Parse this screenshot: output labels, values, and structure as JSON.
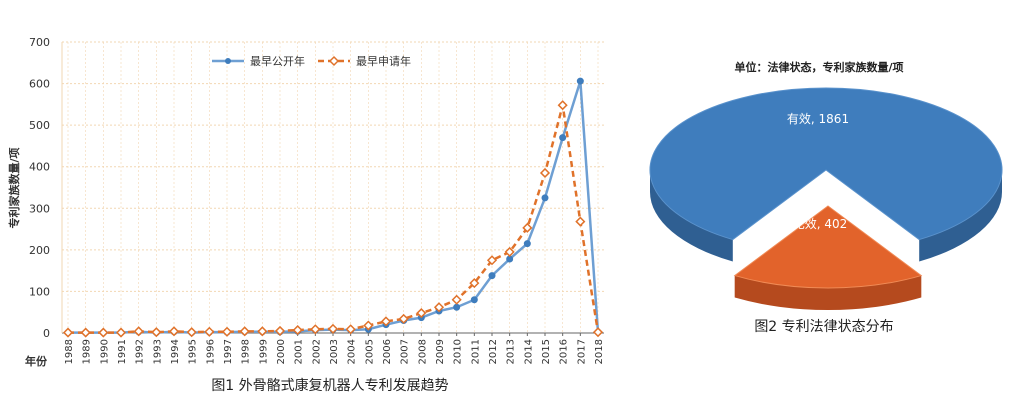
{
  "colors": {
    "line1": "#6e9fd3",
    "line2": "#e0722a",
    "grid": "#f2d7b3",
    "axis": "#666666",
    "pie_valid_top": "#3f7dbd",
    "pie_valid_side": "#2f5f92",
    "pie_invalid_top": "#e2632b",
    "pie_invalid_side": "#b54a1e"
  },
  "chart_data": [
    {
      "type": "line",
      "caption": "图1 外骨骼式康复机器人专利发展趋势",
      "ylabel": "专利家族数量/项",
      "xlabel": "年份",
      "ylim": [
        0,
        700
      ],
      "yticks": [
        "0",
        "100",
        "200",
        "300",
        "400",
        "500",
        "600",
        "700"
      ],
      "grid": true,
      "legend_position": "top-center",
      "x": [
        "1988",
        "1989",
        "1990",
        "1991",
        "1992",
        "1993",
        "1994",
        "1995",
        "1996",
        "1997",
        "1998",
        "1999",
        "2000",
        "2001",
        "2002",
        "2003",
        "2004",
        "2005",
        "2006",
        "2007",
        "2008",
        "2009",
        "2010",
        "2011",
        "2012",
        "2013",
        "2014",
        "2015",
        "2016",
        "2017",
        "2018"
      ],
      "series": [
        {
          "name": "最早公开年",
          "values": [
            1,
            1,
            1,
            1,
            3,
            1,
            3,
            1,
            2,
            2,
            3,
            3,
            3,
            4,
            7,
            8,
            7,
            9,
            20,
            30,
            37,
            53,
            62,
            80,
            138,
            178,
            215,
            325,
            470,
            606,
            2
          ]
        },
        {
          "name": "最早申请年",
          "values": [
            1,
            1,
            1,
            1,
            4,
            2,
            4,
            2,
            3,
            3,
            4,
            4,
            5,
            7,
            9,
            10,
            9,
            18,
            28,
            34,
            48,
            62,
            80,
            120,
            175,
            195,
            253,
            385,
            548,
            268,
            2
          ]
        }
      ]
    },
    {
      "type": "pie",
      "title": "单位：法律状态，专利家族数量/项",
      "caption": "图2 专利法律状态分布",
      "slices": [
        {
          "label": "有效",
          "value": 1861,
          "text": "有效, 1861"
        },
        {
          "label": "无效",
          "value": 402,
          "text": "无效, 402"
        }
      ]
    }
  ]
}
